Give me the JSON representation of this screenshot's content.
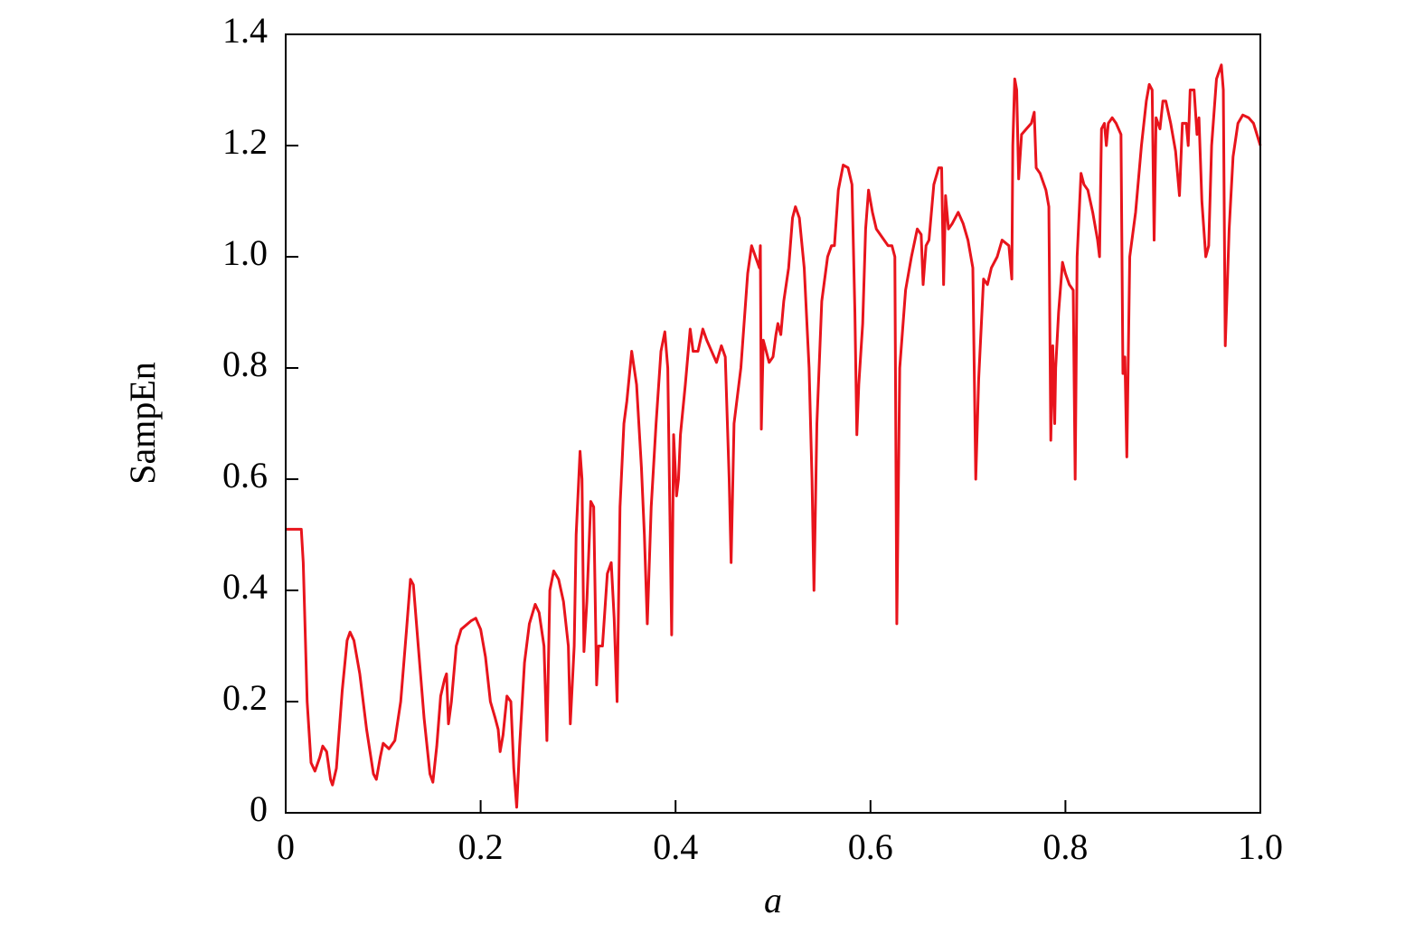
{
  "chart_data": {
    "type": "line",
    "x_label": "a",
    "y_label": "SampEn",
    "xlim": [
      0,
      1
    ],
    "xticks": [
      0,
      0.2,
      0.4,
      0.6,
      0.8,
      {
        "value": 1,
        "label": "1.0"
      }
    ],
    "ylim": [
      0,
      1.4
    ],
    "yticks": [
      0,
      0.2,
      0.4,
      0.6,
      0.8,
      {
        "value": 1,
        "label": "1.0"
      },
      1.2,
      1.4
    ],
    "series": [
      {
        "color": "#e8141c",
        "x": [
          0,
          0.016,
          0.018,
          0.022,
          0.026,
          0.03,
          0.035,
          0.038,
          0.042,
          0.046,
          0.048,
          0.052,
          0.058,
          0.063,
          0.066,
          0.07,
          0.076,
          0.083,
          0.09,
          0.093,
          0.097,
          0.1,
          0.106,
          0.112,
          0.118,
          0.124,
          0.128,
          0.131,
          0.136,
          0.142,
          0.148,
          0.151,
          0.155,
          0.159,
          0.163,
          0.165,
          0.167,
          0.17,
          0.175,
          0.18,
          0.19,
          0.195,
          0.2,
          0.205,
          0.21,
          0.215,
          0.218,
          0.22,
          0.223,
          0.227,
          0.231,
          0.234,
          0.237,
          0.24,
          0.245,
          0.25,
          0.256,
          0.26,
          0.265,
          0.268,
          0.271,
          0.275,
          0.28,
          0.285,
          0.29,
          0.292,
          0.296,
          0.298,
          0.302,
          0.304,
          0.306,
          0.309,
          0.313,
          0.316,
          0.319,
          0.321,
          0.325,
          0.33,
          0.334,
          0.337,
          0.34,
          0.343,
          0.347,
          0.35,
          0.355,
          0.36,
          0.365,
          0.368,
          0.371,
          0.375,
          0.38,
          0.385,
          0.389,
          0.392,
          0.396,
          0.398,
          0.401,
          0.403,
          0.405,
          0.41,
          0.415,
          0.418,
          0.423,
          0.428,
          0.432,
          0.437,
          0.442,
          0.447,
          0.451,
          0.455,
          0.457,
          0.46,
          0.467,
          0.474,
          0.478,
          0.482,
          0.486,
          0.487,
          0.488,
          0.49,
          0.493,
          0.496,
          0.5,
          0.503,
          0.505,
          0.508,
          0.511,
          0.516,
          0.52,
          0.523,
          0.527,
          0.532,
          0.537,
          0.54,
          0.542,
          0.545,
          0.55,
          0.556,
          0.56,
          0.563,
          0.567,
          0.572,
          0.577,
          0.581,
          0.584,
          0.586,
          0.588,
          0.592,
          0.595,
          0.598,
          0.602,
          0.606,
          0.612,
          0.618,
          0.622,
          0.625,
          0.627,
          0.63,
          0.636,
          0.642,
          0.648,
          0.652,
          0.654,
          0.657,
          0.66,
          0.665,
          0.67,
          0.673,
          0.675,
          0.677,
          0.68,
          0.684,
          0.69,
          0.695,
          0.7,
          0.705,
          0.708,
          0.711,
          0.716,
          0.72,
          0.724,
          0.73,
          0.735,
          0.742,
          0.745,
          0.746,
          0.748,
          0.75,
          0.752,
          0.755,
          0.76,
          0.765,
          0.768,
          0.77,
          0.774,
          0.78,
          0.783,
          0.785,
          0.787,
          0.789,
          0.79,
          0.793,
          0.797,
          0.8,
          0.804,
          0.808,
          0.81,
          0.812,
          0.816,
          0.819,
          0.823,
          0.828,
          0.833,
          0.835,
          0.837,
          0.84,
          0.842,
          0.844,
          0.848,
          0.852,
          0.857,
          0.859,
          0.861,
          0.863,
          0.866,
          0.872,
          0.878,
          0.883,
          0.886,
          0.889,
          0.891,
          0.893,
          0.897,
          0.9,
          0.903,
          0.908,
          0.913,
          0.917,
          0.92,
          0.924,
          0.926,
          0.928,
          0.932,
          0.935,
          0.937,
          0.94,
          0.944,
          0.947,
          0.95,
          0.955,
          0.96,
          0.962,
          0.964,
          0.968,
          0.972,
          0.977,
          0.982,
          0.988,
          0.993,
          1.0
        ],
        "values": [
          0.51,
          0.51,
          0.45,
          0.2,
          0.09,
          0.075,
          0.1,
          0.12,
          0.11,
          0.06,
          0.05,
          0.08,
          0.22,
          0.31,
          0.325,
          0.31,
          0.25,
          0.15,
          0.07,
          0.06,
          0.1,
          0.125,
          0.115,
          0.13,
          0.2,
          0.33,
          0.42,
          0.41,
          0.3,
          0.17,
          0.07,
          0.055,
          0.12,
          0.21,
          0.24,
          0.25,
          0.16,
          0.2,
          0.3,
          0.33,
          0.345,
          0.35,
          0.33,
          0.28,
          0.2,
          0.17,
          0.15,
          0.11,
          0.14,
          0.21,
          0.2,
          0.08,
          0.01,
          0.12,
          0.27,
          0.34,
          0.375,
          0.36,
          0.3,
          0.13,
          0.4,
          0.435,
          0.42,
          0.38,
          0.3,
          0.16,
          0.3,
          0.5,
          0.65,
          0.6,
          0.29,
          0.38,
          0.56,
          0.55,
          0.23,
          0.3,
          0.3,
          0.43,
          0.45,
          0.35,
          0.2,
          0.55,
          0.7,
          0.74,
          0.83,
          0.77,
          0.62,
          0.5,
          0.34,
          0.55,
          0.7,
          0.83,
          0.865,
          0.8,
          0.32,
          0.68,
          0.57,
          0.6,
          0.68,
          0.77,
          0.87,
          0.83,
          0.83,
          0.87,
          0.85,
          0.83,
          0.81,
          0.84,
          0.82,
          0.6,
          0.45,
          0.7,
          0.8,
          0.97,
          1.02,
          1.0,
          0.98,
          1.02,
          0.69,
          0.85,
          0.83,
          0.81,
          0.82,
          0.86,
          0.88,
          0.86,
          0.92,
          0.98,
          1.07,
          1.09,
          1.07,
          0.98,
          0.8,
          0.6,
          0.4,
          0.7,
          0.92,
          1.0,
          1.02,
          1.02,
          1.12,
          1.165,
          1.16,
          1.13,
          0.9,
          0.68,
          0.77,
          0.88,
          1.05,
          1.12,
          1.08,
          1.05,
          1.035,
          1.02,
          1.02,
          1.0,
          0.34,
          0.8,
          0.94,
          1.0,
          1.05,
          1.04,
          0.95,
          1.02,
          1.03,
          1.13,
          1.16,
          1.16,
          0.95,
          1.11,
          1.05,
          1.06,
          1.08,
          1.06,
          1.03,
          0.98,
          0.6,
          0.78,
          0.96,
          0.95,
          0.98,
          1.0,
          1.03,
          1.02,
          0.96,
          1.2,
          1.32,
          1.3,
          1.14,
          1.22,
          1.23,
          1.24,
          1.26,
          1.16,
          1.15,
          1.12,
          1.09,
          0.67,
          0.84,
          0.7,
          0.8,
          0.9,
          0.99,
          0.97,
          0.95,
          0.94,
          0.6,
          1.0,
          1.15,
          1.13,
          1.12,
          1.08,
          1.03,
          1.0,
          1.23,
          1.24,
          1.2,
          1.24,
          1.25,
          1.24,
          1.22,
          0.79,
          0.82,
          0.64,
          1.0,
          1.08,
          1.2,
          1.28,
          1.31,
          1.3,
          1.03,
          1.25,
          1.23,
          1.28,
          1.28,
          1.24,
          1.19,
          1.11,
          1.24,
          1.24,
          1.2,
          1.3,
          1.3,
          1.22,
          1.25,
          1.1,
          1.0,
          1.02,
          1.2,
          1.32,
          1.345,
          1.3,
          0.84,
          1.05,
          1.18,
          1.24,
          1.255,
          1.25,
          1.24,
          1.2
        ]
      }
    ]
  }
}
